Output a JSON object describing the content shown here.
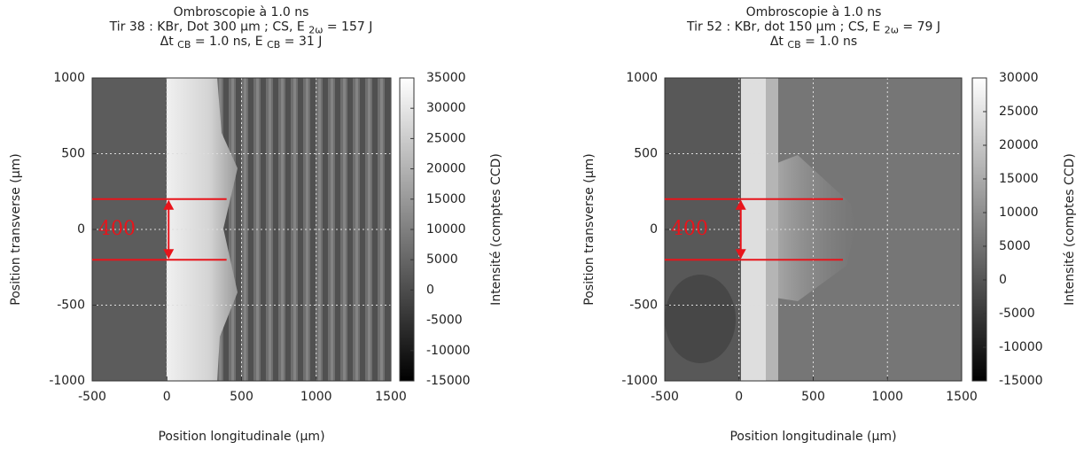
{
  "chart_data": [
    {
      "type": "heatmap",
      "title_lines": [
        [
          {
            "text": "Ombroscopie à 1.0 ns"
          }
        ],
        [
          {
            "text": "Tir 38 : KBr, Dot 300 µm ; CS, E "
          },
          {
            "text": "2ω",
            "sub": true
          },
          {
            "text": " = 157 J"
          }
        ],
        [
          {
            "text": "Δt "
          },
          {
            "text": "CB",
            "sub": true
          },
          {
            "text": " = 1.0 ns, E "
          },
          {
            "text": "CB",
            "sub": true
          },
          {
            "text": " = 31 J"
          }
        ]
      ],
      "xlabel": "Position longitudinale (µm)",
      "ylabel": "Position transverse (µm)",
      "colorbar_label": "Intensité (comptes CCD)",
      "xlim": [
        -500,
        1500
      ],
      "xticks": [
        -500,
        0,
        500,
        1000,
        1500
      ],
      "ylim": [
        -1000,
        1000
      ],
      "yticks": [
        -1000,
        -500,
        0,
        500,
        1000
      ],
      "clim": [
        -15000,
        35000
      ],
      "cticks": [
        -15000,
        -10000,
        -5000,
        0,
        5000,
        10000,
        15000,
        20000,
        25000,
        30000,
        35000
      ],
      "grid": true,
      "annotation": {
        "text": "400",
        "color": "#e8141b",
        "y_range": [
          -200,
          200
        ],
        "x_range": [
          -500,
          400
        ]
      }
    },
    {
      "type": "heatmap",
      "title_lines": [
        [
          {
            "text": "Ombroscopie à 1.0 ns"
          }
        ],
        [
          {
            "text": "Tir 52 : KBr, dot 150 µm ; CS, E "
          },
          {
            "text": "2ω",
            "sub": true
          },
          {
            "text": " = 79 J"
          }
        ],
        [
          {
            "text": "Δt "
          },
          {
            "text": "CB",
            "sub": true
          },
          {
            "text": " = 1.0 ns"
          }
        ]
      ],
      "xlabel": "Position longitudinale (µm)",
      "ylabel": "Position transverse (µm)",
      "colorbar_label": "Intensité (comptes CCD)",
      "xlim": [
        -500,
        1500
      ],
      "xticks": [
        -500,
        0,
        500,
        1000,
        1500
      ],
      "ylim": [
        -1000,
        1000
      ],
      "yticks": [
        -1000,
        -500,
        0,
        500,
        1000
      ],
      "clim": [
        -15000,
        30000
      ],
      "cticks": [
        -15000,
        -10000,
        -5000,
        0,
        5000,
        10000,
        15000,
        20000,
        25000,
        30000
      ],
      "grid": true,
      "annotation": {
        "text": "400",
        "color": "#e8141b",
        "y_range": [
          -200,
          200
        ],
        "x_range": [
          -500,
          700
        ]
      }
    }
  ]
}
